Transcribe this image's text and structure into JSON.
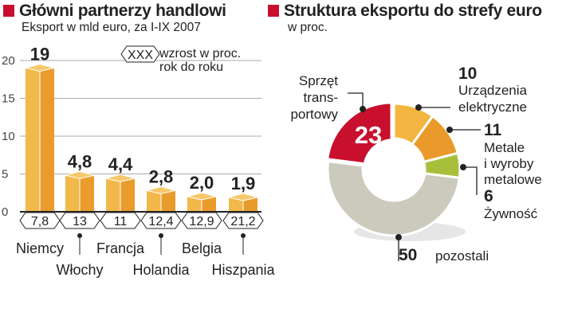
{
  "chart_data": [
    {
      "type": "bar",
      "title": "Główni partnerzy handlowi",
      "subtitle": "Eksport w mld euro, za I-IX 2007",
      "categories": [
        "Niemcy",
        "Włochy",
        "Francja",
        "Holandia",
        "Belgia",
        "Hiszpania"
      ],
      "values": [
        19,
        4.8,
        4.4,
        2.8,
        2.0,
        1.9
      ],
      "value_labels": [
        "19",
        "4,8",
        "4,4",
        "2,8",
        "2,0",
        "1,9"
      ],
      "growth_labels": [
        "7,8",
        "13",
        "11",
        "12,4",
        "12,9",
        "21,2"
      ],
      "legend": {
        "symbol": "XXX",
        "text_line1": "wzrost w proc.",
        "text_line2": "rok do roku"
      },
      "yticks": [
        "0",
        "5",
        "10",
        "15",
        "20"
      ],
      "ylim": [
        0,
        20
      ],
      "grid": true,
      "bar_color": "#f0b040"
    },
    {
      "type": "pie",
      "title": "Struktura eksportu do strefy euro",
      "subtitle": "w proc.",
      "slices": [
        {
          "value": 10,
          "label_value": "10",
          "label": [
            "Urządzenia",
            "elektryczne"
          ],
          "color": "#f2b640"
        },
        {
          "value": 11,
          "label_value": "11",
          "label": [
            "Metale",
            "i wyroby",
            "metalowe"
          ],
          "color": "#ea9a2a"
        },
        {
          "value": 6,
          "label_value": "6",
          "label": [
            "Żywność"
          ],
          "color": "#a8bf3c"
        },
        {
          "value": 50,
          "label_value": "50",
          "label": [
            "pozostali"
          ],
          "color": "#cbcabd"
        },
        {
          "value": 23,
          "label_value": "23",
          "label": [
            "Sprzęt",
            "trans-",
            "portowy"
          ],
          "color": "#c8102e"
        }
      ]
    }
  ]
}
